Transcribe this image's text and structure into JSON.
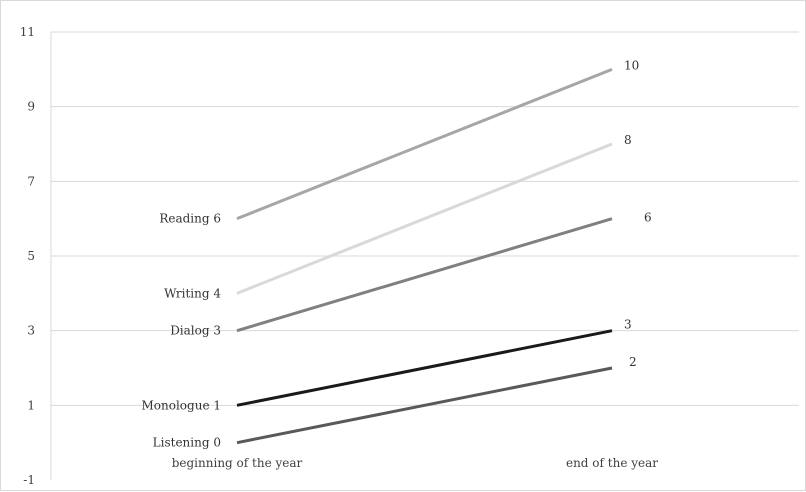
{
  "chart_data": {
    "type": "line",
    "categories": [
      "beginning of the year",
      "end of the year"
    ],
    "ylim": [
      -1,
      11
    ],
    "yticks": [
      -1,
      1,
      3,
      5,
      7,
      9,
      11
    ],
    "grid": true,
    "series": [
      {
        "name": "Reading",
        "start_label": "Reading 6",
        "end_label": "10",
        "values": [
          6,
          10
        ],
        "color": "#a6a6a6"
      },
      {
        "name": "Writing",
        "start_label": "Writing 4",
        "end_label": "8",
        "values": [
          4,
          8
        ],
        "color": "#d9d9d9"
      },
      {
        "name": "Dialog",
        "start_label": "Dialog 3",
        "end_label": "6",
        "values": [
          3,
          6
        ],
        "color": "#808080"
      },
      {
        "name": "Monologue",
        "start_label": "Monologue 1",
        "end_label": "3",
        "values": [
          1,
          3
        ],
        "color": "#1a1a1a"
      },
      {
        "name": "Listening",
        "start_label": "Listening 0",
        "end_label": "2",
        "values": [
          0,
          2
        ],
        "color": "#595959"
      }
    ]
  }
}
